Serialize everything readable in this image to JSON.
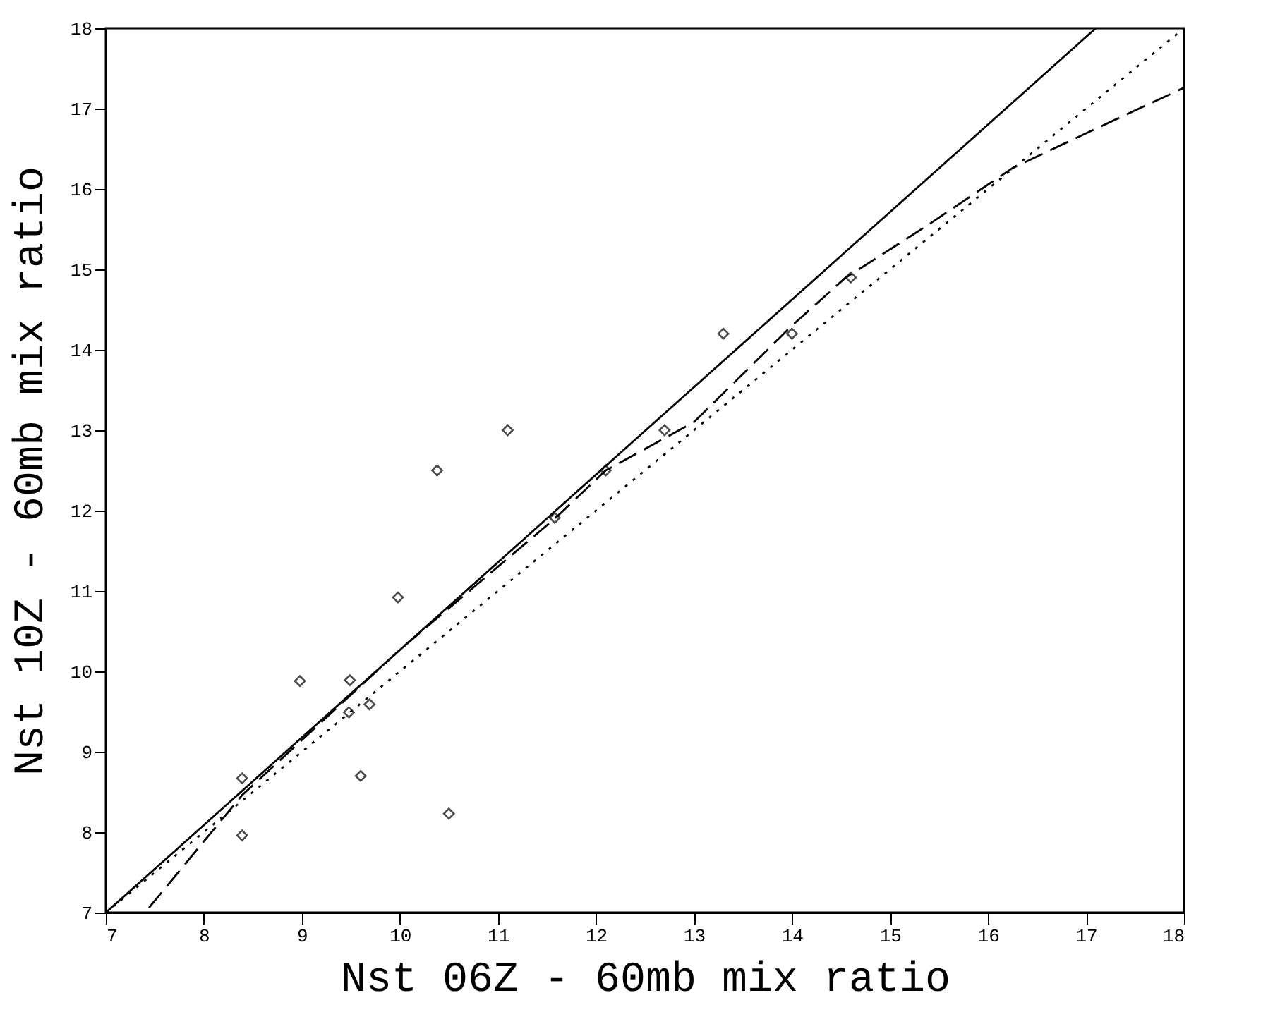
{
  "chart_data": {
    "type": "scatter",
    "xlabel": "Nst 06Z - 60mb mix ratio",
    "ylabel": "Nst 10Z - 60mb mix ratio",
    "xlim": [
      7,
      18
    ],
    "ylim": [
      7,
      18
    ],
    "xticks": [
      7,
      8,
      9,
      10,
      11,
      12,
      13,
      14,
      15,
      16,
      17,
      18
    ],
    "yticks": [
      7,
      8,
      9,
      10,
      11,
      12,
      13,
      14,
      15,
      16,
      17,
      18
    ],
    "grid": false,
    "series": [
      {
        "color": "#000000",
        "marker": "diamond",
        "x": [
          8.39,
          8.39,
          8.98,
          9.49,
          9.48,
          9.69,
          9.6,
          9.98,
          10.5,
          10.38,
          11.1,
          11.58,
          12.1,
          12.7,
          13.3,
          14.0,
          14.6
        ],
        "values": [
          8.67,
          7.96,
          9.88,
          9.89,
          9.49,
          9.59,
          8.7,
          10.92,
          8.23,
          12.5,
          13.0,
          11.91,
          12.5,
          13.0,
          14.2,
          14.2,
          14.9
        ]
      },
      {
        "type": "line",
        "color": "#000000",
        "line_style": "solid",
        "x": [
          7,
          17.1
        ],
        "values": [
          7,
          18
        ]
      },
      {
        "type": "line",
        "color": "#000000",
        "line_style": "dashed",
        "x": [
          7.44,
          8.39,
          10.0,
          11.58,
          12.1,
          13.0,
          14.0,
          14.54,
          15.36,
          16.25,
          17.1,
          18.0
        ],
        "values": [
          7.06,
          8.46,
          10.27,
          11.9,
          12.5,
          13.1,
          14.3,
          14.89,
          15.53,
          16.26,
          16.75,
          17.26
        ]
      },
      {
        "type": "line",
        "color": "#000000",
        "line_style": "dotted",
        "x": [
          7,
          18
        ],
        "values": [
          7,
          18
        ]
      }
    ]
  }
}
